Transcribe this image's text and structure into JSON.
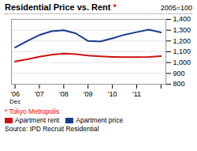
{
  "chart_data": {
    "type": "line",
    "title": "Residential Price vs. Rent",
    "subtitle": "2005=100",
    "series": [
      {
        "name": "Apartment price",
        "color": "#1a3a8c",
        "x": [
          2006.0,
          2006.5,
          2007.0,
          2007.5,
          2008.0,
          2008.5,
          2009.0,
          2009.5,
          2010.0,
          2010.5,
          2011.0,
          2011.5,
          2012.0
        ],
        "values": [
          1140,
          1200,
          1255,
          1290,
          1300,
          1270,
          1200,
          1195,
          1225,
          1258,
          1282,
          1305,
          1280
        ]
      },
      {
        "name": "Apartment rent",
        "color": "#cc1111",
        "x": [
          2006.0,
          2006.5,
          2007.0,
          2007.5,
          2008.0,
          2008.5,
          2009.0,
          2009.5,
          2010.0,
          2010.5,
          2011.0,
          2011.5,
          2012.0
        ],
        "values": [
          1010,
          1030,
          1055,
          1072,
          1083,
          1078,
          1065,
          1058,
          1053,
          1050,
          1050,
          1053,
          1060
        ]
      }
    ],
    "xlim": [
      2005.85,
      2012.2
    ],
    "xticks": [
      {
        "value": 2006.0,
        "label": "'06"
      },
      {
        "value": 2007.0,
        "label": "'07"
      },
      {
        "value": 2008.0,
        "label": "'08"
      },
      {
        "value": 2009.0,
        "label": "'09"
      },
      {
        "value": 2010.0,
        "label": "'10"
      },
      {
        "value": 2011.0,
        "label": "'11"
      },
      {
        "value": 2012.0,
        "label": null
      }
    ],
    "ylim": [
      800,
      1400
    ],
    "yticks": [
      800,
      900,
      {
        "value": 1000,
        "label": "1,000"
      },
      {
        "value": 1100,
        "label": "1,100"
      },
      {
        "value": 1200,
        "label": "1,200"
      },
      {
        "value": 1300,
        "label": "1,300"
      },
      {
        "value": 1400,
        "label": "1,400"
      }
    ],
    "grid": true,
    "legend": "bottom",
    "annotations": [
      {
        "text": "*",
        "color": "red"
      },
      {
        "text": "Dec",
        "x": 2006.0
      },
      {
        "text": "* Tokyo Metropolis",
        "color": "red"
      },
      {
        "text": "Source: IPD Recruit Residential"
      }
    ]
  }
}
